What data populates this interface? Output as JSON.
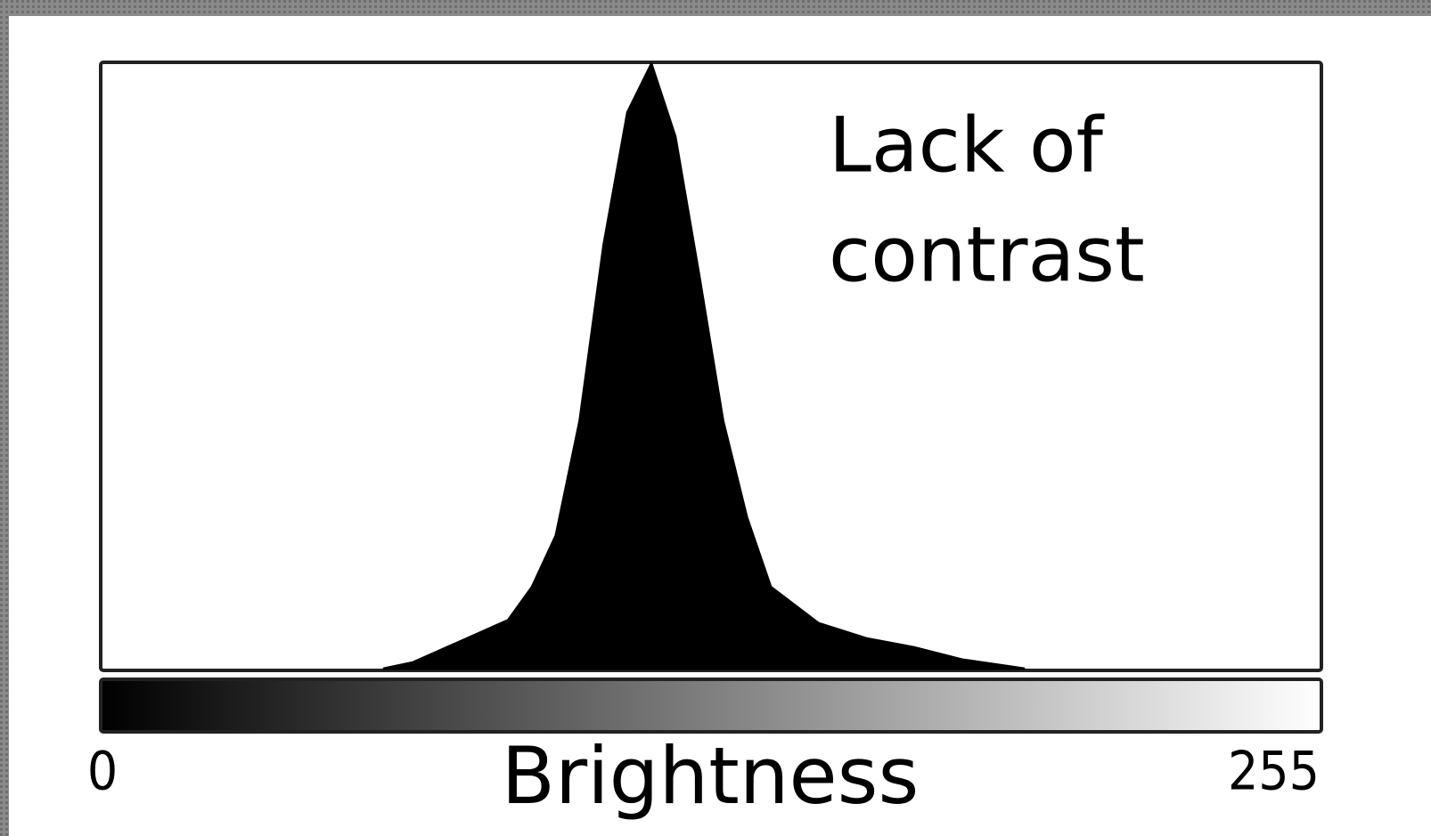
{
  "chart_data": {
    "type": "area",
    "xlabel": "Brightness",
    "annotations": [
      "Lack of",
      "contrast"
    ],
    "x": [
      59,
      65,
      75,
      85,
      90,
      95,
      100,
      105,
      110,
      115,
      120,
      125,
      130,
      135,
      140,
      150,
      160,
      170,
      180,
      193
    ],
    "values": [
      0,
      1,
      4.5,
      8,
      13.5,
      22,
      41,
      70,
      92,
      100,
      88,
      65,
      41,
      25,
      13.5,
      7.5,
      5,
      3.5,
      1.5,
      0
    ],
    "color": "#000000",
    "xlim": [
      0,
      255
    ],
    "xticks": [
      0,
      255
    ],
    "ylim": [
      0,
      100
    ]
  }
}
